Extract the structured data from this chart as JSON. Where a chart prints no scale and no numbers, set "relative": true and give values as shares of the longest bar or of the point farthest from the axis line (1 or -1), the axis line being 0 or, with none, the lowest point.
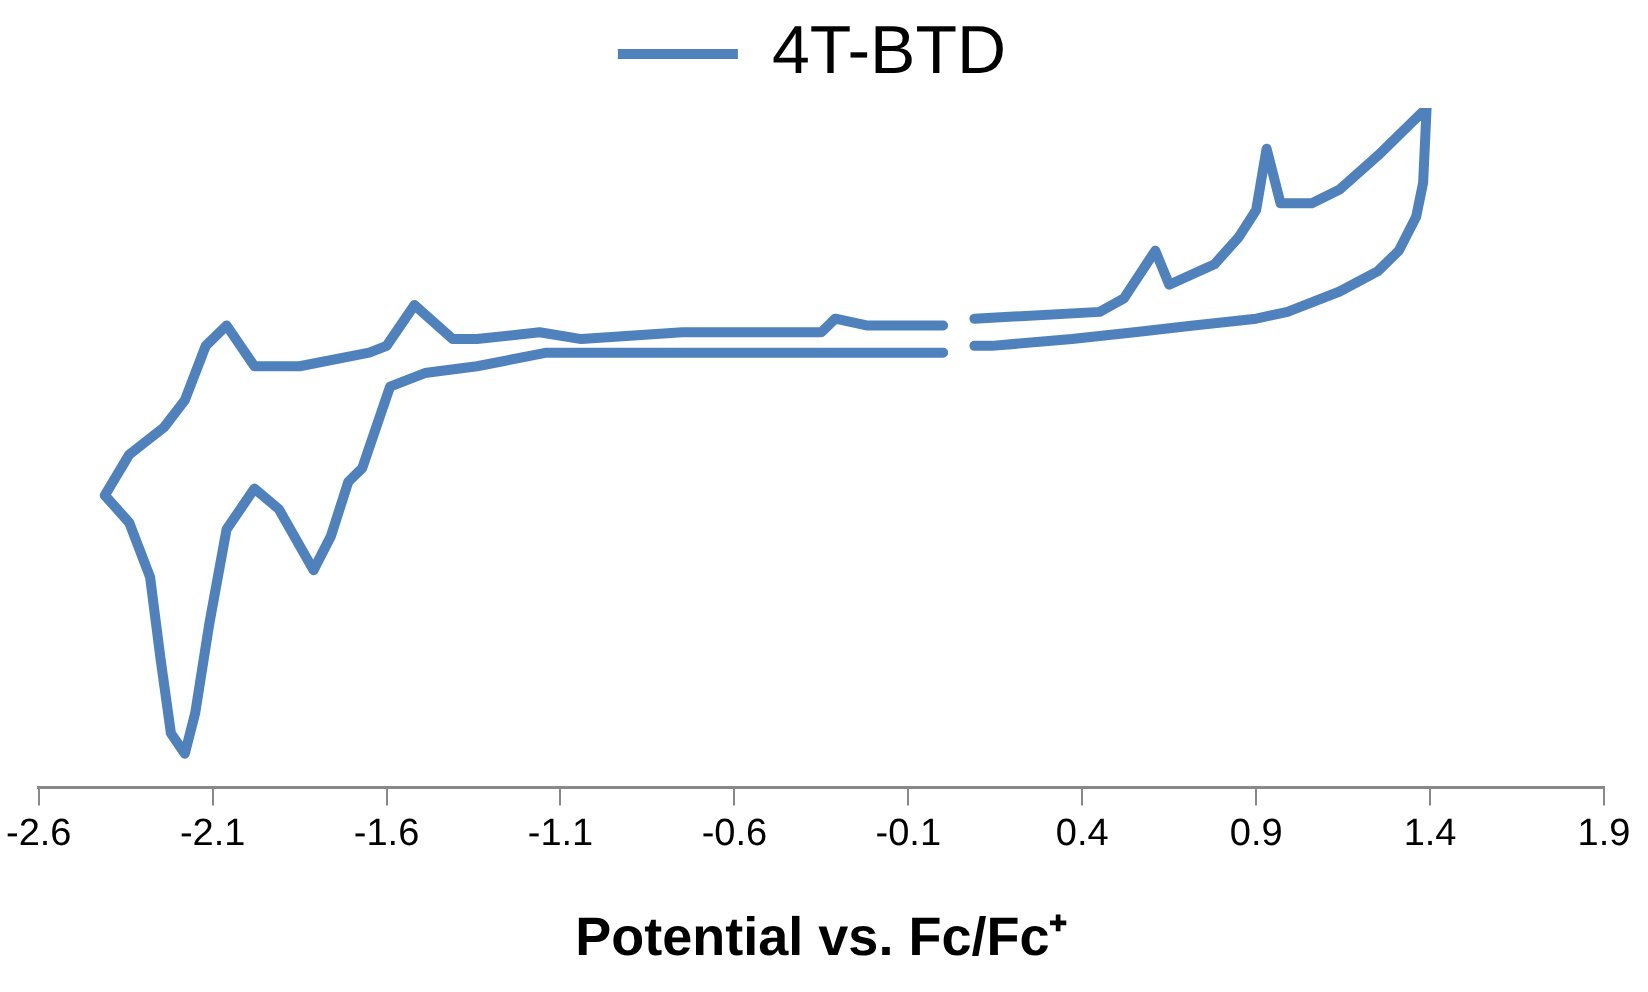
{
  "chart_data": {
    "type": "line",
    "xlabel": "Potential vs. Fc/Fc⁺",
    "relative": true,
    "xlim": [
      -2.6,
      1.9
    ],
    "xticks": [
      -2.6,
      -2.1,
      -1.6,
      -1.1,
      -0.6,
      -0.1,
      0.4,
      0.9,
      1.4,
      1.9
    ],
    "legend": "top",
    "grid": false,
    "marker": "none",
    "line_style": "solid",
    "series": [
      {
        "name": "4T-BTD",
        "color": "#4f81bd",
        "x": [
          0.0,
          -0.1,
          -0.22,
          -0.31,
          -0.35,
          -0.57,
          -0.75,
          -1.04,
          -1.16,
          -1.34,
          -1.41,
          -1.52,
          -1.6,
          -1.65,
          -1.85,
          -1.98,
          -2.06,
          -2.12,
          -2.18,
          -2.24,
          -2.34,
          -2.41,
          -2.34,
          -2.28,
          -2.25,
          -2.22,
          -2.18,
          -2.15,
          -2.11,
          -2.06,
          -1.98,
          -1.91,
          -1.81,
          -1.76,
          -1.71,
          -1.67,
          -1.63,
          -1.59,
          -1.49,
          -1.34,
          -1.14,
          -0.75,
          -0.35,
          0.0,
          null,
          0.09,
          0.45,
          0.52,
          0.61,
          0.65,
          0.78,
          0.85,
          0.9,
          0.93,
          0.97,
          1.06,
          1.14,
          1.25,
          1.39,
          1.38,
          1.36,
          1.31,
          1.25,
          1.14,
          0.99,
          0.9,
          0.72,
          0.55,
          0.37,
          0.14,
          0.09
        ],
        "values": [
          0.68,
          0.68,
          0.68,
          0.69,
          0.67,
          0.67,
          0.67,
          0.66,
          0.67,
          0.66,
          0.66,
          0.71,
          0.65,
          0.64,
          0.62,
          0.62,
          0.68,
          0.65,
          0.57,
          0.53,
          0.49,
          0.43,
          0.39,
          0.31,
          0.19,
          0.08,
          0.05,
          0.11,
          0.24,
          0.38,
          0.44,
          0.41,
          0.32,
          0.37,
          0.45,
          0.47,
          0.53,
          0.59,
          0.61,
          0.62,
          0.64,
          0.64,
          0.64,
          0.64,
          null,
          0.69,
          0.7,
          0.72,
          0.79,
          0.74,
          0.77,
          0.81,
          0.85,
          0.94,
          0.86,
          0.86,
          0.88,
          0.93,
          1.0,
          0.89,
          0.84,
          0.79,
          0.76,
          0.73,
          0.7,
          0.69,
          0.68,
          0.67,
          0.66,
          0.65,
          0.65
        ]
      }
    ]
  }
}
